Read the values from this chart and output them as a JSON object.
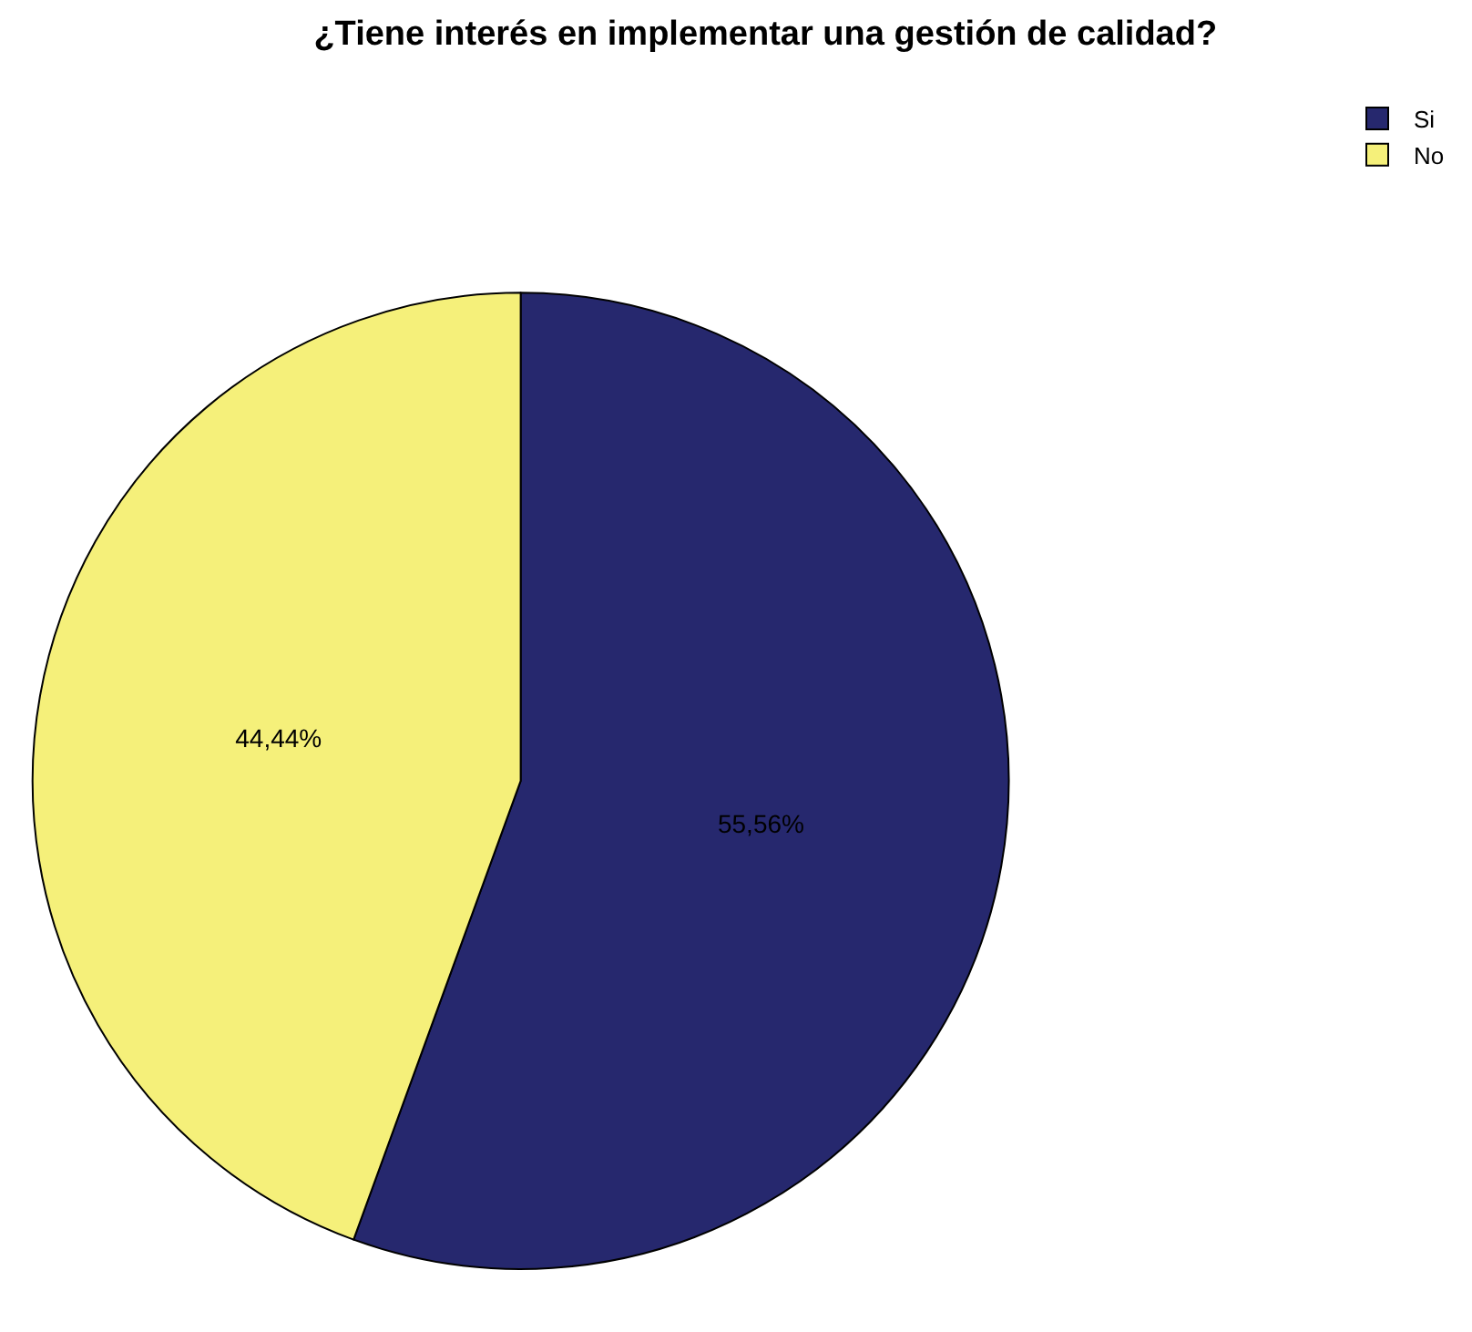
{
  "chart_data": {
    "type": "pie",
    "title": "¿Tiene interés en implementar una gestión de calidad?",
    "categories": [
      "Si",
      "No"
    ],
    "values": [
      55.56,
      44.44
    ],
    "colors": [
      "#26286e",
      "#f5f07a"
    ],
    "value_labels": [
      "55,56%",
      "44,44%"
    ],
    "legend": "top right"
  }
}
